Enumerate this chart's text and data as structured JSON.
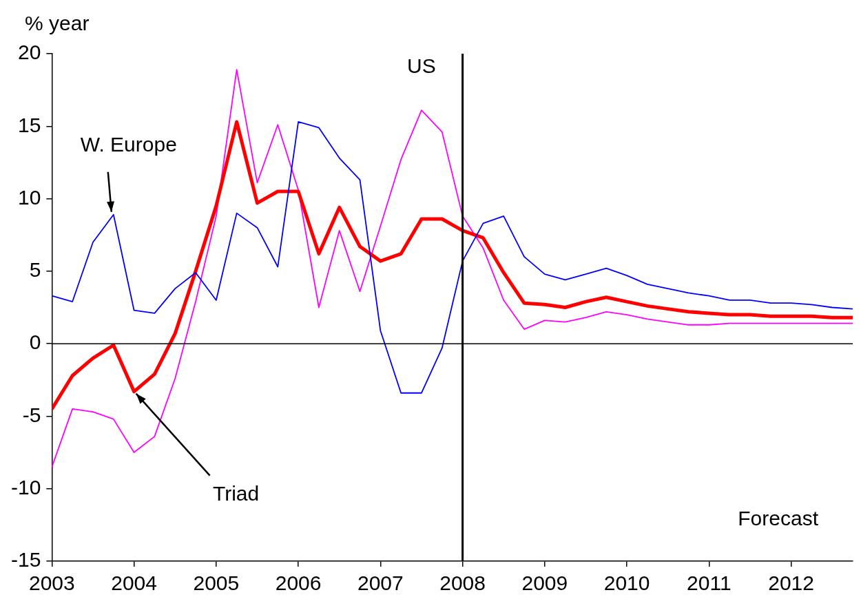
{
  "chart_data": {
    "type": "line",
    "ylabel": "% year",
    "x": [
      2003,
      2003.25,
      2003.5,
      2003.75,
      2004,
      2004.25,
      2004.5,
      2004.75,
      2005,
      2005.25,
      2005.5,
      2005.75,
      2006,
      2006.25,
      2006.5,
      2006.75,
      2007,
      2007.25,
      2007.5,
      2007.75,
      2008,
      2008.25,
      2008.5,
      2008.75,
      2009,
      2009.25,
      2009.5,
      2009.75,
      2010,
      2010.25,
      2010.5,
      2010.75,
      2011,
      2011.25,
      2011.5,
      2011.75,
      2012,
      2012.25,
      2012.5,
      2012.75
    ],
    "series": [
      {
        "color": "#0000ff",
        "values": [
          3.3,
          2.9,
          7.0,
          8.9,
          2.3,
          2.1,
          3.8,
          4.9,
          3.0,
          9.0,
          8.0,
          5.3,
          15.3,
          14.9,
          12.8,
          11.3,
          0.9,
          -3.4,
          -3.4,
          -0.3,
          5.7,
          8.3,
          8.8,
          6.0,
          4.8,
          4.4,
          4.8,
          5.2,
          4.7,
          4.1,
          3.8,
          3.5,
          3.3,
          3.0,
          3.0,
          2.8,
          2.8,
          2.7,
          2.5,
          2.4
        ]
      },
      {
        "color": "#ff0000",
        "values": [
          -4.5,
          -2.2,
          -1.0,
          -0.1,
          -3.3,
          -2.1,
          0.7,
          5.0,
          9.5,
          15.3,
          9.7,
          10.5,
          10.5,
          6.2,
          9.4,
          6.7,
          5.7,
          6.2,
          8.6,
          8.6,
          7.8,
          7.3,
          4.9,
          2.8,
          2.7,
          2.5,
          2.9,
          3.2,
          2.9,
          2.6,
          2.4,
          2.2,
          2.1,
          2.0,
          2.0,
          1.9,
          1.9,
          1.9,
          1.8,
          1.8
        ]
      },
      {
        "color": "#ff00ff",
        "values": [
          -8.5,
          -4.5,
          -4.7,
          -5.2,
          -7.5,
          -6.4,
          -2.4,
          2.9,
          8.8,
          18.9,
          11.1,
          15.1,
          10.6,
          2.5,
          7.8,
          3.6,
          8.1,
          12.7,
          16.1,
          14.6,
          8.8,
          6.6,
          3.0,
          1.0,
          1.6,
          1.5,
          1.8,
          2.2,
          2.0,
          1.7,
          1.5,
          1.3,
          1.3,
          1.4,
          1.4,
          1.4,
          1.4,
          1.4,
          1.4,
          1.4
        ]
      }
    ],
    "xlim": [
      2003,
      2012.75
    ],
    "xticks": [
      2003,
      2004,
      2005,
      2006,
      2007,
      2008,
      2009,
      2010,
      2011,
      2012
    ],
    "ylim": [
      -15,
      20
    ],
    "yticks": [
      -15,
      -10,
      -5,
      0,
      5,
      10,
      15,
      20
    ],
    "ref_lines": [
      {
        "axis": "x",
        "value": 2008,
        "color": "#000000"
      },
      {
        "axis": "y",
        "value": 0,
        "color": "#000000"
      }
    ],
    "annotations": [
      {
        "text": "W. Europe",
        "x": 2003.75,
        "y": 8.9
      },
      {
        "text": "Triad",
        "x": 2004,
        "y": -3.3
      },
      {
        "text": "US",
        "x": 2007.5,
        "y": 16.1
      },
      "Forecast"
    ],
    "grid": false,
    "legend": false,
    "marker": "none",
    "line_style": "solid"
  }
}
